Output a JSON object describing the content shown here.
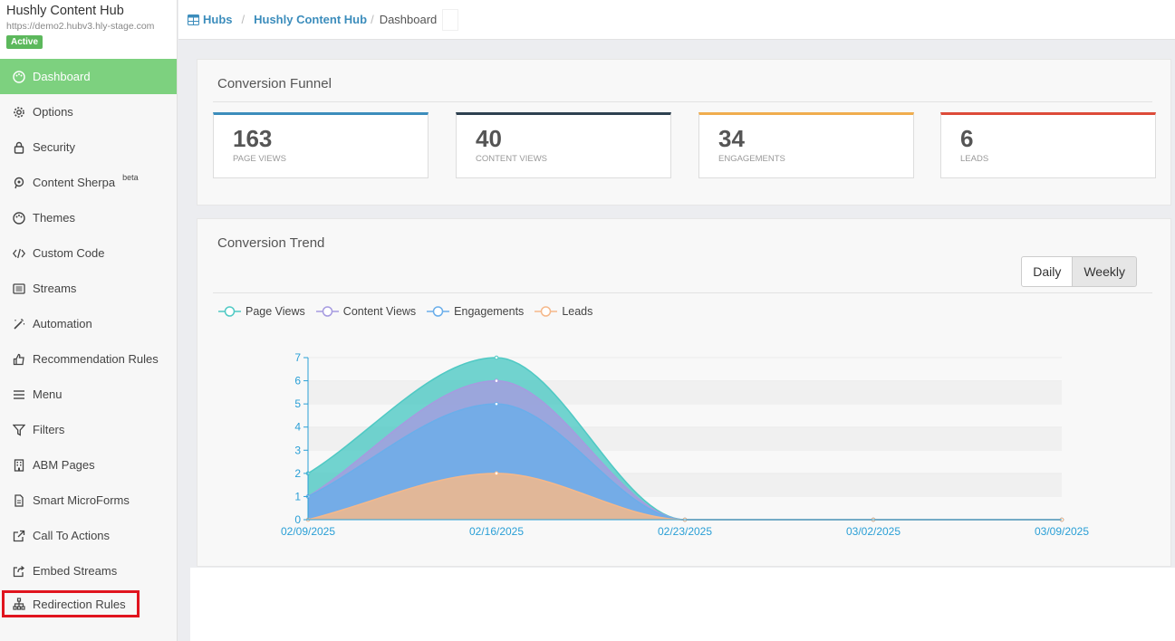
{
  "brand": {
    "title": "Hushly Content Hub",
    "url": "https://demo2.hubv3.hly-stage.com",
    "status": "Active"
  },
  "sidebar": {
    "items": [
      {
        "label": "Dashboard",
        "icon": "palette-icon",
        "active": true
      },
      {
        "label": "Options",
        "icon": "gear-icon"
      },
      {
        "label": "Security",
        "icon": "lock-icon"
      },
      {
        "label": "Content Sherpa",
        "icon": "sherpa-icon",
        "sup": "beta"
      },
      {
        "label": "Themes",
        "icon": "palette-icon"
      },
      {
        "label": "Custom Code",
        "icon": "code-icon"
      },
      {
        "label": "Streams",
        "icon": "list-icon"
      },
      {
        "label": "Automation",
        "icon": "magic-wand-icon"
      },
      {
        "label": "Recommendation Rules",
        "icon": "thumbs-up-icon"
      },
      {
        "label": "Menu",
        "icon": "menu-icon"
      },
      {
        "label": "Filters",
        "icon": "filter-icon"
      },
      {
        "label": "ABM Pages",
        "icon": "building-icon"
      },
      {
        "label": "Smart MicroForms",
        "icon": "file-icon"
      },
      {
        "label": "Call To Actions",
        "icon": "external-link-icon"
      },
      {
        "label": "Embed Streams",
        "icon": "share-icon"
      },
      {
        "label": "Redirection Rules",
        "icon": "sitemap-icon",
        "highlighted": true
      }
    ]
  },
  "breadcrumb": {
    "hubs": "Hubs",
    "hub": "Hushly Content Hub",
    "current": "Dashboard",
    "sep": "/"
  },
  "funnel": {
    "title": "Conversion Funnel",
    "cards": [
      {
        "value": "163",
        "label": "PAGE VIEWS",
        "color": "#3c8dbc"
      },
      {
        "value": "40",
        "label": "CONTENT VIEWS",
        "color": "#2e4150"
      },
      {
        "value": "34",
        "label": "ENGAGEMENTS",
        "color": "#f0ad4e"
      },
      {
        "value": "6",
        "label": "LEADS",
        "color": "#dd4b39"
      }
    ]
  },
  "trend": {
    "title": "Conversion Trend",
    "buttons": {
      "daily": "Daily",
      "weekly": "Weekly"
    }
  },
  "chart_data": {
    "type": "area",
    "categories": [
      "02/09/2025",
      "02/16/2025",
      "02/23/2025",
      "03/02/2025",
      "03/09/2025"
    ],
    "series": [
      {
        "name": "Page Views",
        "values": [
          2,
          7,
          0,
          0,
          0
        ],
        "color": "#4fc9c4"
      },
      {
        "name": "Content Views",
        "values": [
          1,
          6,
          0,
          0,
          0
        ],
        "color": "#a69be0"
      },
      {
        "name": "Engagements",
        "values": [
          1,
          5,
          0,
          0,
          0
        ],
        "color": "#6aaeea"
      },
      {
        "name": "Leads",
        "values": [
          0,
          2,
          0,
          0,
          0
        ],
        "color": "#f5b88a"
      }
    ],
    "ylim": [
      0,
      7
    ],
    "yticks": [
      "0",
      "1",
      "2",
      "3",
      "4",
      "5",
      "6",
      "7"
    ],
    "legend": "top-left",
    "grid": true
  }
}
